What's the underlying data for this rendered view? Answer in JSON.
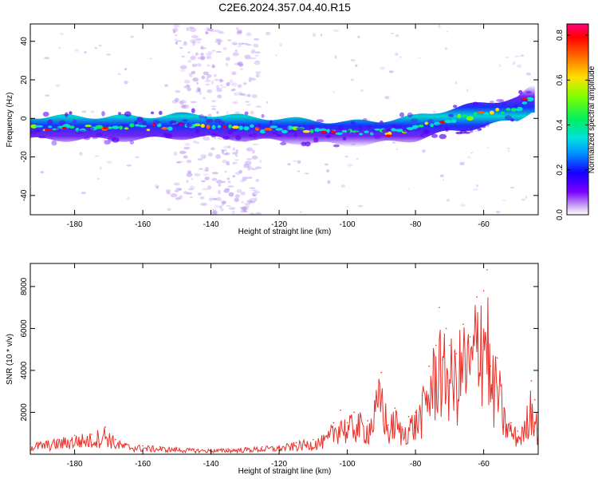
{
  "title": "C2E6.2024.357.04.40.R15",
  "colors": {
    "snr_line": "#e8312a",
    "track_low": "#5a00f0",
    "scatter": "#b48cf0"
  },
  "chart_data": [
    {
      "type": "heatmap",
      "xlabel": "Height of straight line (km)",
      "ylabel": "Frequency (Hz)",
      "xlim": [
        -193,
        -44
      ],
      "ylim": [
        -50,
        49
      ],
      "xticks": [
        "-180",
        "-160",
        "-140",
        "-120",
        "-100",
        "-80",
        "-60"
      ],
      "yticks": [
        "40",
        "20",
        "0",
        "-20",
        "-40"
      ],
      "colorbar": {
        "label": "Normalized spectral amplitude",
        "range": [
          0,
          0.85
        ],
        "ticks": [
          "0.8",
          "0.6",
          "0.4",
          "0.2",
          "0.0"
        ]
      },
      "ridge": {
        "x": [
          -192,
          -180,
          -170,
          -160,
          -150,
          -140,
          -130,
          -120,
          -110,
          -100,
          -90,
          -80,
          -70,
          -60,
          -50,
          -46
        ],
        "y": [
          -5,
          -5,
          -5,
          -5,
          -4,
          -4,
          -5,
          -6,
          -7,
          -8,
          -7,
          -5,
          -1,
          2,
          5,
          10
        ]
      },
      "grid": false
    },
    {
      "type": "line",
      "xlabel": "Height of straight line (km)",
      "ylabel": "SNR (10 * v/v)",
      "xlim": [
        -193,
        -44
      ],
      "ylim": [
        0,
        9100
      ],
      "xticks": [
        "-180",
        "-160",
        "-140",
        "-120",
        "-100",
        "-80",
        "-60"
      ],
      "yticks": [
        "8000",
        "6000",
        "4000",
        "2000"
      ],
      "series": [
        {
          "x": [
            -193,
            -185,
            -180,
            -175,
            -171,
            -168,
            -165,
            -160,
            -155,
            -150,
            -145,
            -140,
            -135,
            -130,
            -125,
            -120,
            -115,
            -110,
            -106,
            -104,
            -102,
            -100,
            -98,
            -96,
            -94,
            -92,
            -90,
            -88,
            -86,
            -84,
            -82,
            -80,
            -78,
            -76,
            -74,
            -73,
            -72,
            -71,
            -70,
            -68,
            -66,
            -64,
            -62,
            -61,
            -60,
            -59,
            -58,
            -56,
            -54,
            -52,
            -50,
            -48,
            -46,
            -45,
            -44
          ],
          "y": [
            500,
            700,
            900,
            950,
            1300,
            700,
            500,
            400,
            350,
            300,
            250,
            230,
            260,
            300,
            350,
            400,
            550,
            700,
            900,
            1500,
            2100,
            1500,
            2000,
            1800,
            1600,
            2500,
            3900,
            1400,
            2200,
            1300,
            1800,
            2000,
            2800,
            4200,
            5200,
            7000,
            4500,
            6000,
            5200,
            4800,
            6200,
            5600,
            7500,
            9100,
            7800,
            8800,
            4200,
            4600,
            2200,
            1500,
            1100,
            1500,
            3500,
            2600,
            1200
          ]
        }
      ],
      "grid": false
    }
  ]
}
